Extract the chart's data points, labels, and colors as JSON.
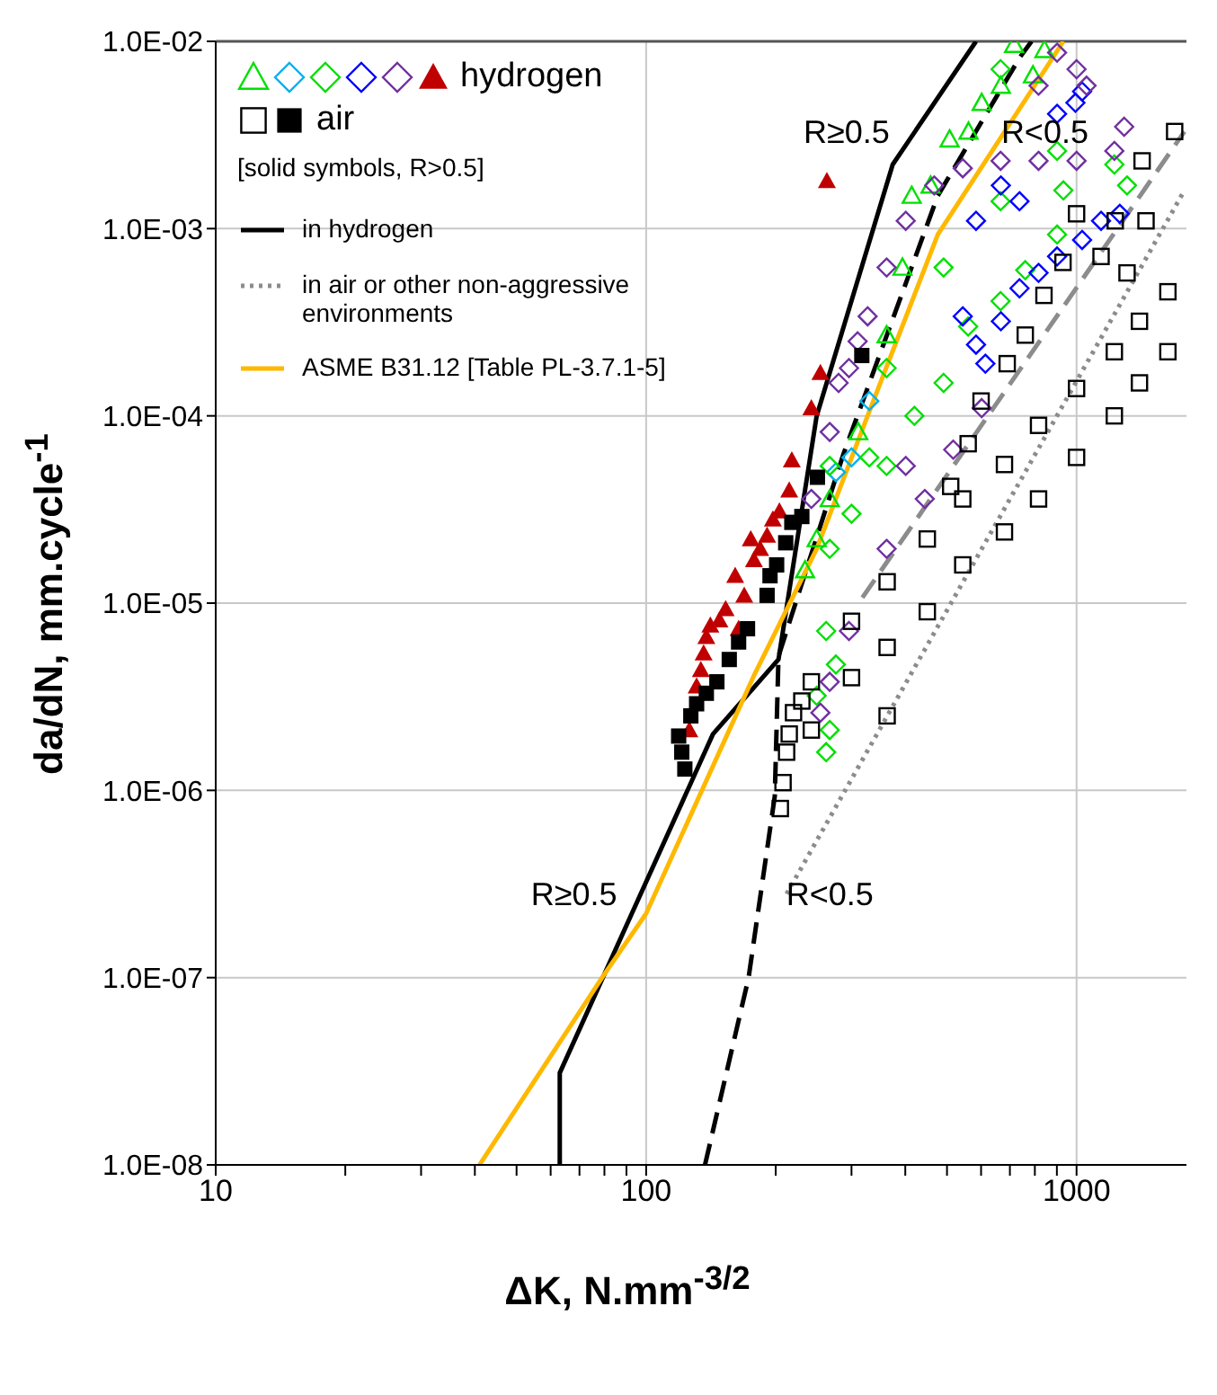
{
  "chart_data": {
    "type": "scatter",
    "xlabel": "ΔK, N.mm$^{-3/2}$",
    "ylabel": "da/dN, mm.cycle$^{-1}$",
    "log": "xy",
    "grid": true,
    "legend": "top left",
    "xlim": [
      10,
      1800
    ],
    "ylim": [
      1e-08,
      0.01
    ],
    "xticks": [
      10,
      {
        "value": 20,
        "label": null
      },
      {
        "value": 30,
        "label": null
      },
      {
        "value": 40,
        "label": null
      },
      {
        "value": 50,
        "label": null
      },
      {
        "value": 60,
        "label": null
      },
      {
        "value": 70,
        "label": null
      },
      {
        "value": 80,
        "label": null
      },
      {
        "value": 90,
        "label": null
      },
      100,
      {
        "value": 200,
        "label": null
      },
      {
        "value": 300,
        "label": null
      },
      {
        "value": 400,
        "label": null
      },
      {
        "value": 500,
        "label": null
      },
      {
        "value": 600,
        "label": null
      },
      {
        "value": 700,
        "label": null
      },
      {
        "value": 800,
        "label": null
      },
      {
        "value": 900,
        "label": null
      },
      1000
    ],
    "yticks": [
      {
        "value": 1e-08,
        "label": "1.0E-08"
      },
      {
        "value": 1e-07,
        "label": "1.0E-07"
      },
      {
        "value": 1e-06,
        "label": "1.0E-06"
      },
      {
        "value": 1e-05,
        "label": "1.0E-05"
      },
      {
        "value": 0.0001,
        "label": "1.0E-04"
      },
      {
        "value": 0.001,
        "label": "1.0E-03"
      },
      {
        "value": 0.01,
        "label": "1.0E-02"
      }
    ],
    "annotations": [
      "[solid symbols, R>0.5]",
      {
        "text": "R≥0.5",
        "x": 421,
        "y": 0.0033
      },
      {
        "text": "R<0.5",
        "x": 584,
        "y": 0.0033
      },
      {
        "text": "R≥0.5",
        "x": 98,
        "y": 2.8e-07
      },
      {
        "text": "R<0.5",
        "x": 185,
        "y": 2.8e-07
      }
    ],
    "series": [
      {
        "name": "hydrogen",
        "marker": "triangle",
        "color": "#c00000",
        "x": [
          126,
          131,
          134,
          136,
          138,
          141,
          148,
          153,
          164,
          161,
          169,
          175,
          178,
          184,
          191,
          197,
          204,
          215,
          218,
          263,
          254,
          242
        ],
        "values": [
          2.1e-06,
          3.6e-06,
          4.4e-06,
          5.4e-06,
          6.6e-06,
          7.6e-06,
          8.1e-06,
          9.3e-06,
          7.3e-06,
          1.4e-05,
          1.1e-05,
          2.2e-05,
          1.7e-05,
          1.95e-05,
          2.3e-05,
          2.8e-05,
          3.1e-05,
          4e-05,
          5.8e-05,
          0.0018,
          0.00017,
          0.00011
        ]
      },
      {
        "marker": "triangle",
        "color": "#00e000",
        "x": [
          414,
          458,
          507,
          561,
          602,
          667,
          716,
          792,
          842,
          234,
          249,
          267,
          311,
          362,
          394
        ],
        "values": [
          0.0015,
          0.0017,
          0.003,
          0.0033,
          0.0047,
          0.0058,
          0.0096,
          0.0066,
          0.009,
          1.5e-05,
          2.2e-05,
          3.6e-05,
          8.2e-05,
          0.00027,
          0.00062
        ]
      },
      {
        "marker": "diamond",
        "color": "#00b0f0",
        "x": [
          276,
          300,
          330
        ],
        "values": [
          5e-05,
          6e-05,
          0.00012
        ]
      },
      {
        "marker": "diamond",
        "color": "#00e000",
        "x": [
          262,
          267,
          249,
          276,
          262,
          267,
          267,
          362,
          362,
          491,
          491,
          666,
          666,
          901,
          901,
          1310,
          1224,
          932,
          666,
          300,
          330,
          420,
          560,
          760
        ],
        "values": [
          1.6e-06,
          2.1e-06,
          3.2e-06,
          4.7e-06,
          7.1e-06,
          1.95e-05,
          5.4e-05,
          5.4e-05,
          0.00018,
          0.00015,
          0.00062,
          0.00041,
          0.0014,
          0.00093,
          0.0026,
          0.0017,
          0.0022,
          0.0016,
          0.0071,
          3e-05,
          6e-05,
          0.0001,
          0.0003,
          0.0006
        ]
      },
      {
        "marker": "diamond",
        "color": "#0000ff",
        "x": [
          544,
          584,
          614,
          667,
          737,
          816,
          901,
          1030,
          1140,
          1260,
          1030,
          901,
          994,
          737,
          667,
          584
        ],
        "values": [
          0.00034,
          0.00024,
          0.00019,
          0.00032,
          0.00048,
          0.00058,
          0.00071,
          0.00087,
          0.0011,
          0.0012,
          0.0054,
          0.0041,
          0.0047,
          0.0014,
          0.0017,
          0.0011
        ]
      },
      {
        "marker": "diamond",
        "color": "#7030a0",
        "x": [
          242,
          267,
          296,
          327,
          362,
          401,
          467,
          544,
          666,
          816,
          1000,
          1224,
          1290,
          901,
          1000,
          1055,
          816,
          254,
          267,
          296,
          362,
          444,
          517,
          602,
          401,
          280,
          310
        ],
        "values": [
          3.6e-05,
          8.2e-05,
          0.00018,
          0.00034,
          0.00062,
          0.0011,
          0.0017,
          0.0021,
          0.0023,
          0.0023,
          0.0023,
          0.0026,
          0.0035,
          0.0087,
          0.0071,
          0.0058,
          0.0058,
          2.6e-06,
          3.8e-06,
          7.1e-06,
          1.95e-05,
          3.6e-05,
          6.6e-05,
          0.00011,
          5.4e-05,
          0.00015,
          0.00025
        ]
      },
      {
        "name": "air",
        "marker": "square",
        "color": "#000000",
        "x": [
          119,
          121,
          123,
          127,
          131,
          138,
          146,
          156,
          164,
          172,
          191,
          194,
          201,
          211,
          218,
          230,
          250,
          317
        ],
        "values": [
          1.95e-06,
          1.6e-06,
          1.3e-06,
          2.5e-06,
          2.9e-06,
          3.3e-06,
          3.8e-06,
          5e-06,
          6.2e-06,
          7.3e-06,
          1.1e-05,
          1.4e-05,
          1.6e-05,
          2.1e-05,
          2.7e-05,
          2.9e-05,
          4.7e-05,
          0.00021
        ]
      },
      {
        "marker": "square",
        "color": "#000000",
        "x": [
          205,
          208,
          212,
          215,
          220,
          230,
          242,
          242,
          363,
          363,
          544,
          544,
          816,
          816,
          1224,
          1224,
          1630,
          1630,
          300,
          300,
          450,
          450,
          680,
          680,
          1000,
          1000,
          1400,
          1400,
          363,
          1230,
          1420,
          1690,
          1000,
          1450,
          1310,
          1140,
          930,
          840,
          760,
          690,
          600,
          560,
          510
        ],
        "values": [
          8e-07,
          1.1e-06,
          1.6e-06,
          2e-06,
          2.6e-06,
          3e-06,
          2.1e-06,
          3.8e-06,
          5.8e-06,
          1.3e-05,
          1.6e-05,
          3.6e-05,
          3.6e-05,
          8.9e-05,
          0.0001,
          0.00022,
          0.00022,
          0.00046,
          4e-06,
          8e-06,
          9e-06,
          2.2e-05,
          2.4e-05,
          5.5e-05,
          6e-05,
          0.00014,
          0.00015,
          0.00032,
          2.5e-06,
          0.0011,
          0.0023,
          0.0033,
          0.0012,
          0.0011,
          0.00058,
          0.00071,
          0.00066,
          0.00044,
          0.00027,
          0.00019,
          0.00012,
          7.1e-05,
          4.2e-05
        ]
      },
      {
        "name": "in hydrogen",
        "type": "line",
        "line_style": "solid",
        "color": "#000000",
        "x": [
          63,
          63,
          143,
          203,
          249,
          374,
          584
        ],
        "values": [
          1e-08,
          3.1e-08,
          2e-06,
          5e-06,
          0.0001,
          0.0022,
          0.01
        ]
      },
      {
        "type": "line",
        "line_style": "dashed",
        "color": "#000000",
        "x": [
          137,
          173,
          199,
          203,
          287,
          476,
          738,
          786
        ],
        "values": [
          1e-08,
          1e-07,
          9.3e-07,
          5.2e-06,
          6.2e-05,
          0.0015,
          0.0082,
          0.01
        ]
      },
      {
        "name": "in air or other non-aggressive environments",
        "type": "line",
        "line_style": "dotted",
        "color": "#8c8c8c",
        "x": [
          212,
          1781
        ],
        "values": [
          2.8e-07,
          0.0016
        ]
      },
      {
        "type": "line",
        "line_style": "dashed",
        "color": "#8c8c8c",
        "x": [
          318,
          1781
        ],
        "values": [
          1.07e-05,
          0.0033
        ]
      },
      {
        "name": "ASME B31.12 [Table PL-3.7.1-5]",
        "type": "line",
        "line_style": "solid",
        "color": "#ffb800",
        "x": [
          41,
          79,
          100,
          178,
          249,
          327,
          476,
          932
        ],
        "values": [
          1e-08,
          1e-07,
          2.2e-07,
          4.1e-06,
          1.95e-05,
          0.0001,
          0.00093,
          0.01
        ]
      }
    ]
  }
}
